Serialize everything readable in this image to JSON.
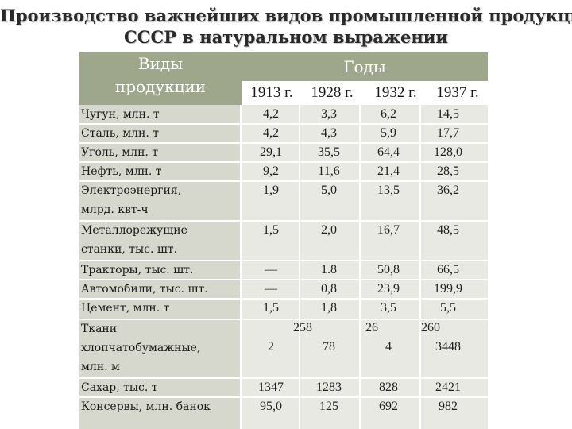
{
  "title": {
    "line1": "Производство важнейших видов промышленной продукции",
    "line2": "СССР в натуральном выражении"
  },
  "table": {
    "header": {
      "kind_line1": "Виды",
      "kind_line2": "продукции",
      "years_label": "Годы",
      "years": [
        "1913 г.",
        "1928 г.",
        "1932 г.",
        "1937 г."
      ]
    },
    "rows": [
      {
        "label": [
          "Чугун, млн. т"
        ],
        "values": [
          "4,2",
          "3,3",
          "6,2",
          "14,5"
        ]
      },
      {
        "label": [
          "Сталь, млн. т"
        ],
        "values": [
          "4,2",
          "4,3",
          "5,9",
          "17,7"
        ]
      },
      {
        "label": [
          "Уголь, млн. т"
        ],
        "values": [
          "29,1",
          "35,5",
          "64,4",
          "128,0"
        ]
      },
      {
        "label": [
          "Нефть, млн. т"
        ],
        "values": [
          "9,2",
          "11,6",
          "21,4",
          "28,5"
        ]
      },
      {
        "label": [
          "Электроэнергия,",
          "млрд. квт-ч"
        ],
        "values": [
          "1,9",
          "5,0",
          "13,5",
          "36,2"
        ]
      },
      {
        "label": [
          "Металлорежущие",
          "станки, тыс. шт."
        ],
        "values": [
          "1,5",
          "2,0",
          "16,7",
          "48,5"
        ]
      },
      {
        "label": [
          "Тракторы, тыс. шт."
        ],
        "values": [
          "—",
          "1.8",
          "50,8",
          "66,5"
        ]
      },
      {
        "label": [
          "Автомобили, тыс. шт."
        ],
        "values": [
          "—",
          "0,8",
          "23,9",
          "199,9"
        ]
      },
      {
        "label": [
          "Цемент, млн. т"
        ],
        "values": [
          "1,5",
          "1,8",
          "3,5",
          "5,5"
        ]
      },
      {
        "label": [
          "Ткани",
          "хлопчатобумажные,",
          "млн. м"
        ],
        "values": [
          "2",
          "78",
          "4",
          "3448"
        ],
        "extra": [
          "258",
          "26",
          "260"
        ]
      },
      {
        "label": [
          "Сахар, тыс. т"
        ],
        "values": [
          "1347",
          "1283",
          "828",
          "2421"
        ]
      },
      {
        "label": [
          "Консервы, млн. банок"
        ],
        "values": [
          "95,0",
          "125",
          "692",
          "982"
        ]
      }
    ]
  },
  "colors": {
    "header_bg": "#9ea68c",
    "label_col_bg": "#d6d8cd",
    "value_col_bg": "#e8e9e3"
  }
}
